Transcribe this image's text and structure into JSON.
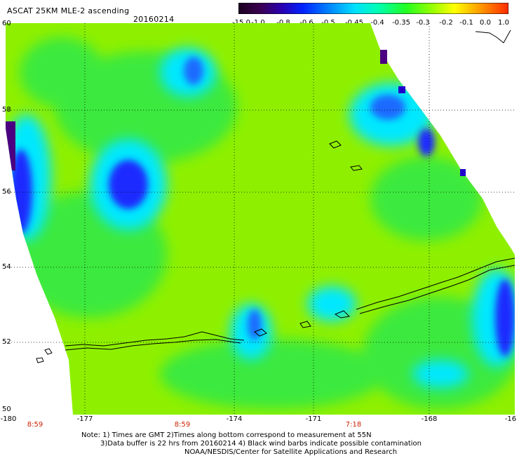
{
  "header": {
    "title": "ASCAT 25KM MLE-2 ascending",
    "date": "20160214"
  },
  "colorbar": {
    "tick_labels": [
      "-15.0",
      "-1.0",
      "-0.8",
      "-0.6",
      "-0.5",
      "-0.45",
      "-0.4",
      "-0.35",
      "-0.3",
      "-0.2",
      "-0.1",
      "0.0",
      "1.0"
    ],
    "colors": [
      "#3b004f",
      "#4b0082",
      "#2200cc",
      "#0033ff",
      "#0077ff",
      "#00bbff",
      "#00ffff",
      "#00ff88",
      "#33ff00",
      "#99ff00",
      "#ffff00",
      "#ff9900",
      "#ff2200"
    ]
  },
  "map": {
    "lat_labels": [
      "60",
      "58",
      "56",
      "54",
      "52",
      "50"
    ],
    "lon_labels": [
      "-180",
      "-177",
      "-174",
      "-171",
      "-168",
      "-16"
    ],
    "time_labels": [
      "8:59",
      "8:59",
      "7:18"
    ],
    "colors": {
      "background_field": "#8ef000",
      "low": "#00e0ff",
      "very_low": "#1a2bff",
      "min": "#4b0082",
      "coast": "#000000"
    }
  },
  "notes": {
    "line1": "Note: 1) Times are GMT 2)Times along bottom correspond to measurement at 55N",
    "line2": "3)Data buffer is 22 hrs from 20160214 4) Black wind barbs indicate possible contamination",
    "line3": "NOAA/NESDIS/Center for Satellite Applications and Research"
  }
}
